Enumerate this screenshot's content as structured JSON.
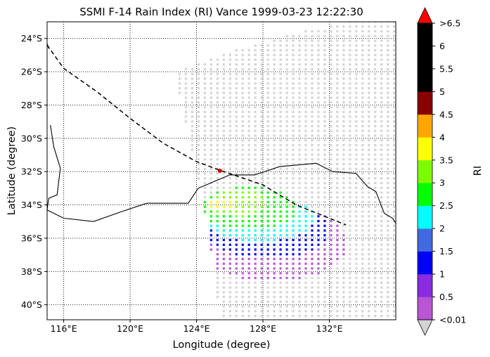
{
  "chart_data": {
    "type": "heatmap",
    "title": "SSMI F-14 Rain Index (RI) Vance 1999-03-23 12:22:30",
    "xlabel": "Longitude (degree)",
    "ylabel": "Latitude (degree)",
    "xlim": [
      115,
      136
    ],
    "ylim": [
      -40.9,
      -23
    ],
    "x_ticks": [
      116,
      120,
      124,
      128,
      132
    ],
    "x_tick_labels": [
      "116°E",
      "120°E",
      "124°E",
      "128°E",
      "132°E"
    ],
    "y_ticks": [
      -24,
      -26,
      -28,
      -30,
      -32,
      -34,
      -36,
      -38,
      -40
    ],
    "y_tick_labels": [
      "24°S",
      "26°S",
      "28°S",
      "30°S",
      "32°S",
      "34°S",
      "36°S",
      "38°S",
      "40°S"
    ],
    "grid": true,
    "colorbar": {
      "label": "RI",
      "tick_labels": [
        "<0.01",
        "0.5",
        "1",
        "1.5",
        "2",
        "2.5",
        "3",
        "3.5",
        "4",
        "4.5",
        "5",
        "5.5",
        "6",
        ">6.5"
      ],
      "colors": [
        "#d3d3d3",
        "#ba55d3",
        "#8a2be2",
        "#0000ff",
        "#4169e1",
        "#00ffff",
        "#00ff00",
        "#7cfc00",
        "#ffff00",
        "#ffa500",
        "#8b0000",
        "#000000",
        "#000000",
        "#ff0000"
      ]
    },
    "track": {
      "style": "dashed",
      "points": [
        [
          115,
          -24.4
        ],
        [
          116,
          -25.8
        ],
        [
          118,
          -27.2
        ],
        [
          120,
          -28.8
        ],
        [
          122,
          -30.3
        ],
        [
          124,
          -31.4
        ],
        [
          125.5,
          -31.95
        ],
        [
          128,
          -32.8
        ],
        [
          130,
          -34.0
        ],
        [
          132,
          -34.8
        ],
        [
          133,
          -35.2
        ]
      ],
      "storm_position": [
        125.4,
        -31.95
      ]
    },
    "swath": {
      "west_edge": [
        [
          122.6,
          -26.0
        ],
        [
          123.6,
          -30.0
        ],
        [
          124.4,
          -34.0
        ],
        [
          124.9,
          -37.0
        ],
        [
          125.4,
          -40.9
        ]
      ],
      "north_edge": [
        [
          122.6,
          -26.0
        ],
        [
          126.0,
          -24.8
        ],
        [
          130.0,
          -23.7
        ],
        [
          133.0,
          -23.0
        ]
      ]
    },
    "rain_regions": [
      {
        "level": 0.5,
        "center": [
          128.5,
          -36.3
        ],
        "radius": [
          4.6,
          2.3
        ]
      },
      {
        "level": 1.5,
        "center": [
          128.3,
          -35.5
        ],
        "radius": [
          3.8,
          1.7
        ]
      },
      {
        "level": 2.5,
        "center": [
          127.8,
          -34.8
        ],
        "radius": [
          3.3,
          1.4
        ]
      },
      {
        "level": 3,
        "center": [
          127.2,
          -34.2
        ],
        "radius": [
          3.0,
          1.3
        ]
      },
      {
        "level": 3.5,
        "center": [
          126.5,
          -33.9
        ],
        "radius": [
          1.8,
          0.8
        ]
      },
      {
        "level": 4,
        "center": [
          125.6,
          -34.0
        ],
        "radius": [
          0.8,
          0.4
        ]
      }
    ],
    "coastline": [
      [
        115.2,
        -29.2
      ],
      [
        115.4,
        -30.5
      ],
      [
        115.8,
        -31.8
      ],
      [
        115.6,
        -33.4
      ],
      [
        115.1,
        -33.6
      ],
      [
        115.0,
        -34.3
      ],
      [
        116.0,
        -34.8
      ],
      [
        117.8,
        -35.0
      ],
      [
        119.5,
        -34.4
      ],
      [
        121.0,
        -33.9
      ],
      [
        123.5,
        -33.9
      ],
      [
        124.1,
        -33.0
      ],
      [
        126.0,
        -32.2
      ],
      [
        127.5,
        -32.2
      ],
      [
        129.0,
        -31.7
      ],
      [
        131.2,
        -31.5
      ],
      [
        132.2,
        -32.0
      ],
      [
        133.6,
        -32.1
      ],
      [
        134.3,
        -32.9
      ],
      [
        134.8,
        -33.2
      ],
      [
        135.3,
        -34.5
      ],
      [
        135.8,
        -34.8
      ],
      [
        136.0,
        -35.1
      ]
    ],
    "coastline_west": [
      [
        115.0,
        -24.3
      ],
      [
        115.1,
        -24.6
      ]
    ]
  }
}
